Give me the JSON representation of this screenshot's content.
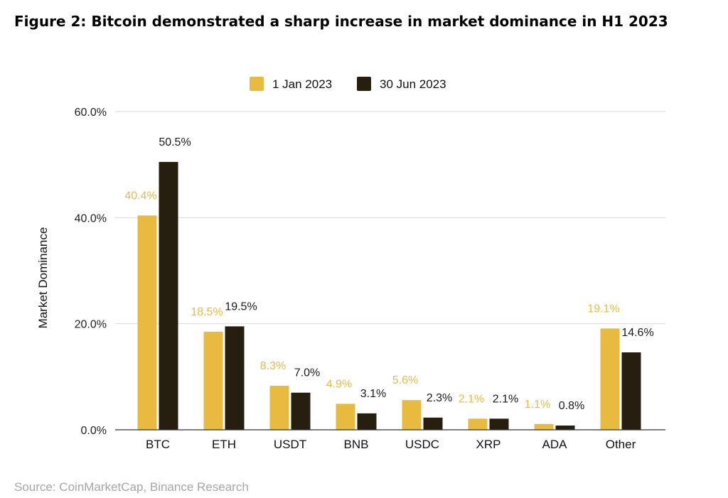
{
  "figure": {
    "title": "Figure 2: Bitcoin demonstrated a sharp increase in market dominance in H1 2023",
    "source": "Source: CoinMarketCap, Binance Research"
  },
  "chart_data": {
    "type": "bar",
    "title": "",
    "xlabel": "",
    "ylabel": "Market Dominance",
    "ylim": [
      0,
      60
    ],
    "yticks": [
      0,
      20,
      40,
      60
    ],
    "ytick_labels": [
      "0.0%",
      "20.0%",
      "40.0%",
      "60.0%"
    ],
    "grid": true,
    "legend_position": "top-center",
    "categories": [
      "BTC",
      "ETH",
      "USDT",
      "BNB",
      "USDC",
      "XRP",
      "ADA",
      "Other"
    ],
    "series": [
      {
        "name": "1 Jan 2023",
        "color": "#e8bb40",
        "label_color": "#e8bb40",
        "values": [
          40.4,
          18.5,
          8.3,
          4.9,
          5.6,
          2.1,
          1.1,
          19.1
        ],
        "labels": [
          "40.4%",
          "18.5%",
          "8.3%",
          "4.9%",
          "5.6%",
          "2.1%",
          "1.1%",
          "19.1%"
        ]
      },
      {
        "name": "30 Jun 2023",
        "color": "#261f10",
        "label_color": "#1a1a1a",
        "values": [
          50.5,
          19.5,
          7.0,
          3.1,
          2.3,
          2.1,
          0.8,
          14.6
        ],
        "labels": [
          "50.5%",
          "19.5%",
          "7.0%",
          "3.1%",
          "2.3%",
          "2.1%",
          "0.8%",
          "14.6%"
        ]
      }
    ]
  }
}
